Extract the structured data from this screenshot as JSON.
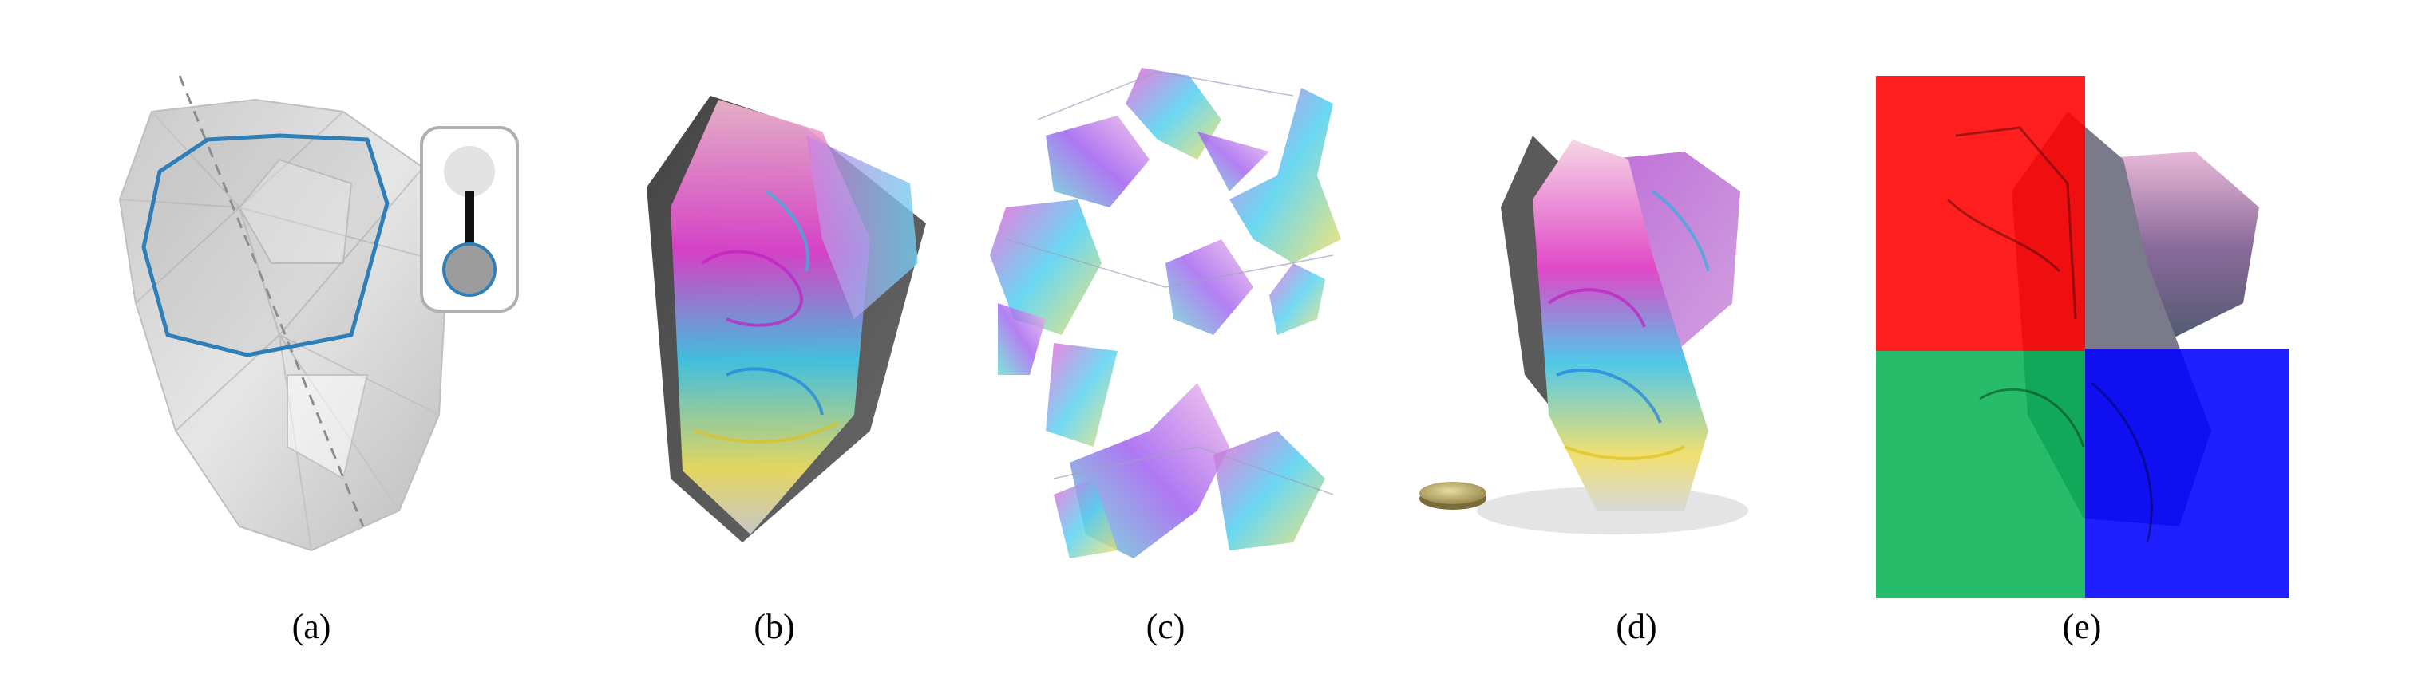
{
  "figure": {
    "panels": [
      {
        "id": "a",
        "caption": "(a)"
      },
      {
        "id": "b",
        "caption": "(b)"
      },
      {
        "id": "c",
        "caption": "(c)"
      },
      {
        "id": "d",
        "caption": "(d)"
      },
      {
        "id": "e",
        "caption": "(e)"
      }
    ]
  },
  "colors": {
    "outline_blue": "#2e7fb8",
    "mesh_gray": "#d0d0d0",
    "overlay_red": "#ff0000",
    "overlay_green": "#00b050",
    "overlay_blue": "#0000ff",
    "print_magenta": "#e030d0",
    "print_cyan": "#30c8e0",
    "print_yellow": "#f0e040"
  },
  "icons": {
    "toggle_switch": "slider-toggle-icon",
    "coin": "coin-icon"
  }
}
